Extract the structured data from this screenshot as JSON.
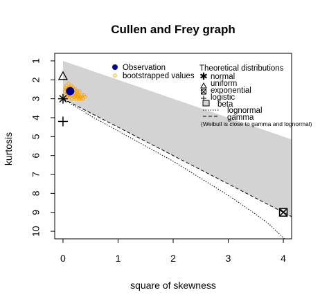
{
  "chart_data": {
    "type": "scatter",
    "title": "Cullen and Frey graph",
    "xlabel": "square of skewness",
    "ylabel": "kurtosis",
    "xlim": [
      -0.15,
      4.15
    ],
    "ylim": [
      10.4,
      0.6
    ],
    "x_ticks": [
      "0",
      "1",
      "2",
      "3",
      "4"
    ],
    "y_ticks": [
      "1",
      "2",
      "3",
      "4",
      "5",
      "6",
      "7",
      "8",
      "9",
      "10"
    ],
    "observation": {
      "x": 0.13,
      "y": 2.6
    },
    "bootstrap_x": [
      0.04,
      0.06,
      0.08,
      0.1,
      0.12,
      0.14,
      0.16,
      0.18,
      0.2,
      0.22,
      0.24,
      0.26,
      0.28,
      0.3,
      0.05,
      0.09,
      0.13,
      0.17,
      0.21,
      0.25,
      0.29,
      0.33,
      0.07,
      0.11,
      0.15,
      0.19,
      0.23,
      0.27,
      0.31,
      0.36,
      0.03,
      0.1,
      0.18,
      0.26,
      0.34,
      0.4,
      0.12,
      0.2,
      0.28,
      0.08,
      0.16,
      0.24,
      0.32,
      0.38,
      0.06,
      0.14,
      0.22,
      0.3
    ],
    "bootstrap_y": [
      2.4,
      2.3,
      2.5,
      2.6,
      2.4,
      2.7,
      2.8,
      2.6,
      2.7,
      2.9,
      2.8,
      2.7,
      2.9,
      3.0,
      2.5,
      2.6,
      2.5,
      2.6,
      2.8,
      2.9,
      3.0,
      3.0,
      2.7,
      2.8,
      2.3,
      2.5,
      2.6,
      2.8,
      2.9,
      3.0,
      2.6,
      2.2,
      2.4,
      2.6,
      2.8,
      2.9,
      2.9,
      2.9,
      2.8,
      2.9,
      3.0,
      3.0,
      2.9,
      2.8,
      2.8,
      2.4,
      2.5,
      2.6
    ],
    "theoretical": {
      "normal": {
        "x": 0,
        "y": 3
      },
      "uniform": {
        "x": 0,
        "y": 1.8
      },
      "exponential": {
        "x": 4,
        "y": 9
      },
      "logistic": {
        "x": 0,
        "y": 4.2
      },
      "beta_region_upper": [
        [
          0,
          1
        ],
        [
          4.15,
          5.15
        ]
      ],
      "beta_region_lower": [
        [
          0,
          3
        ],
        [
          4,
          9
        ],
        [
          4.15,
          9.3
        ]
      ],
      "gamma_line": [
        [
          0,
          3
        ],
        [
          4.15,
          9.225
        ]
      ],
      "lognormal_line": [
        [
          0,
          3
        ],
        [
          0.5,
          3.9
        ],
        [
          1,
          4.7
        ],
        [
          1.5,
          5.5
        ],
        [
          2,
          6.3
        ],
        [
          2.5,
          7.2
        ],
        [
          3,
          8.1
        ],
        [
          3.5,
          9.1
        ],
        [
          3.73,
          9.6
        ],
        [
          4.02,
          10.4
        ]
      ]
    },
    "legend": {
      "position": "top",
      "left_entries": [
        "Observation",
        "bootstrapped values"
      ],
      "right_title": "Theoretical distributions",
      "right_entries": [
        "normal",
        "uniform",
        "exponential",
        "logistic",
        "beta",
        "lognormal",
        "gamma"
      ],
      "note": "(Weibull is close to gamma and lognormal)"
    },
    "colors": {
      "observation": "#00008b",
      "bootstrap": "#ffa500",
      "beta_fill": "#d3d3d3",
      "axes": "#000000"
    }
  }
}
